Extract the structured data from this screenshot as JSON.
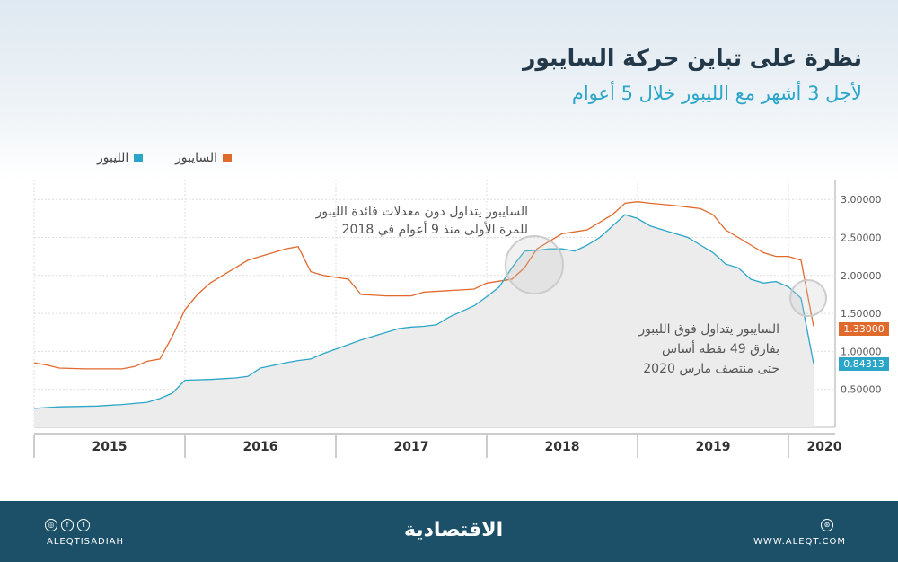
{
  "header": {
    "title": "نظرة على تباين حركة السايبور",
    "subtitle": "لأجل 3 أشهر مع الليبور خلال 5 أعوام"
  },
  "colors": {
    "saibor": "#e0692c",
    "libor": "#2ba6c8",
    "footer": "#1c5068"
  },
  "annotations": [
    {
      "lines": [
        "السايبور يتداول دون معدلات فائدة الليبور",
        "للمرة الأولى منذ 9 أعوام في 2018"
      ]
    },
    {
      "lines": [
        "السايبور يتداول فوق الليبور",
        "بفارق 49 نقطة أساس",
        "حتى منتصف مارس 2020"
      ]
    }
  ],
  "last_values": {
    "saibor": "1.33000",
    "libor": "0.84313"
  },
  "footer": {
    "handle": "ALEQTISADIAH",
    "logo": "الاقتصادية",
    "website": "WWW.ALEQT.COM",
    "social_icons": [
      "instagram-icon",
      "facebook-icon",
      "twitter-icon"
    ]
  },
  "chart_data": {
    "type": "line",
    "title": "",
    "xlabel": "",
    "ylabel": "",
    "x_ticks": [
      "2015",
      "2016",
      "2017",
      "2018",
      "2019",
      "2020"
    ],
    "y_ticks": [
      "0.50000",
      "1.00000",
      "1.50000",
      "2.00000",
      "2.50000",
      "3.00000"
    ],
    "ylim": [
      0,
      3.2
    ],
    "xlim": [
      "2015-01",
      "2020-04"
    ],
    "grid": true,
    "legend": "top-right",
    "series": [
      {
        "name": "السايبور",
        "color": "#e0692c",
        "points": [
          [
            "2015-01",
            0.85
          ],
          [
            "2015-02",
            0.82
          ],
          [
            "2015-03",
            0.78
          ],
          [
            "2015-05",
            0.77
          ],
          [
            "2015-08",
            0.77
          ],
          [
            "2015-09",
            0.8
          ],
          [
            "2015-10",
            0.87
          ],
          [
            "2015-11",
            0.9
          ],
          [
            "2015-12",
            1.2
          ],
          [
            "2016-01",
            1.55
          ],
          [
            "2016-02",
            1.75
          ],
          [
            "2016-03",
            1.9
          ],
          [
            "2016-05",
            2.1
          ],
          [
            "2016-06",
            2.2
          ],
          [
            "2016-07",
            2.25
          ],
          [
            "2016-09",
            2.35
          ],
          [
            "2016-10",
            2.38
          ],
          [
            "2016-11",
            2.05
          ],
          [
            "2016-12",
            2.0
          ],
          [
            "2017-02",
            1.95
          ],
          [
            "2017-03",
            1.75
          ],
          [
            "2017-05",
            1.73
          ],
          [
            "2017-07",
            1.73
          ],
          [
            "2017-08",
            1.78
          ],
          [
            "2017-10",
            1.8
          ],
          [
            "2017-12",
            1.82
          ],
          [
            "2018-01",
            1.9
          ],
          [
            "2018-03",
            1.95
          ],
          [
            "2018-04",
            2.1
          ],
          [
            "2018-05",
            2.35
          ],
          [
            "2018-06",
            2.45
          ],
          [
            "2018-07",
            2.55
          ],
          [
            "2018-09",
            2.6
          ],
          [
            "2018-10",
            2.7
          ],
          [
            "2018-11",
            2.8
          ],
          [
            "2018-12",
            2.95
          ],
          [
            "2019-01",
            2.97
          ],
          [
            "2019-02",
            2.95
          ],
          [
            "2019-04",
            2.92
          ],
          [
            "2019-05",
            2.9
          ],
          [
            "2019-06",
            2.88
          ],
          [
            "2019-07",
            2.8
          ],
          [
            "2019-08",
            2.6
          ],
          [
            "2019-09",
            2.5
          ],
          [
            "2019-10",
            2.4
          ],
          [
            "2019-11",
            2.3
          ],
          [
            "2019-12",
            2.25
          ],
          [
            "2020-01",
            2.25
          ],
          [
            "2020-02",
            2.2
          ],
          [
            "2020-03",
            1.33
          ]
        ]
      },
      {
        "name": "الليبور",
        "color": "#2ba6c8",
        "points": [
          [
            "2015-01",
            0.25
          ],
          [
            "2015-03",
            0.27
          ],
          [
            "2015-06",
            0.28
          ],
          [
            "2015-08",
            0.3
          ],
          [
            "2015-10",
            0.33
          ],
          [
            "2015-11",
            0.38
          ],
          [
            "2015-12",
            0.45
          ],
          [
            "2016-01",
            0.62
          ],
          [
            "2016-03",
            0.63
          ],
          [
            "2016-05",
            0.65
          ],
          [
            "2016-06",
            0.67
          ],
          [
            "2016-07",
            0.78
          ],
          [
            "2016-09",
            0.85
          ],
          [
            "2016-10",
            0.88
          ],
          [
            "2016-11",
            0.9
          ],
          [
            "2016-12",
            0.97
          ],
          [
            "2017-01",
            1.03
          ],
          [
            "2017-03",
            1.15
          ],
          [
            "2017-04",
            1.2
          ],
          [
            "2017-05",
            1.25
          ],
          [
            "2017-06",
            1.3
          ],
          [
            "2017-07",
            1.32
          ],
          [
            "2017-08",
            1.33
          ],
          [
            "2017-09",
            1.35
          ],
          [
            "2017-10",
            1.45
          ],
          [
            "2017-12",
            1.6
          ],
          [
            "2018-01",
            1.72
          ],
          [
            "2018-02",
            1.85
          ],
          [
            "2018-03",
            2.1
          ],
          [
            "2018-04",
            2.32
          ],
          [
            "2018-05",
            2.33
          ],
          [
            "2018-06",
            2.35
          ],
          [
            "2018-07",
            2.35
          ],
          [
            "2018-08",
            2.32
          ],
          [
            "2018-09",
            2.4
          ],
          [
            "2018-10",
            2.5
          ],
          [
            "2018-11",
            2.65
          ],
          [
            "2018-12",
            2.8
          ],
          [
            "2019-01",
            2.75
          ],
          [
            "2019-02",
            2.65
          ],
          [
            "2019-03",
            2.6
          ],
          [
            "2019-04",
            2.55
          ],
          [
            "2019-05",
            2.5
          ],
          [
            "2019-06",
            2.4
          ],
          [
            "2019-07",
            2.3
          ],
          [
            "2019-08",
            2.15
          ],
          [
            "2019-09",
            2.1
          ],
          [
            "2019-10",
            1.95
          ],
          [
            "2019-11",
            1.9
          ],
          [
            "2019-12",
            1.92
          ],
          [
            "2020-01",
            1.85
          ],
          [
            "2020-02",
            1.7
          ],
          [
            "2020-03",
            0.84
          ]
        ]
      }
    ]
  }
}
